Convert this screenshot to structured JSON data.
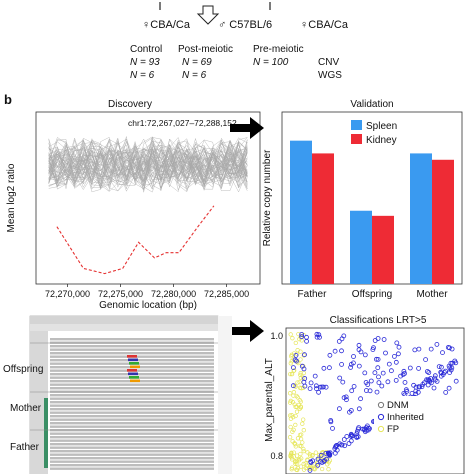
{
  "top": {
    "left_strain": "♀CBA/Ca",
    "middle_strain": "♂ C57BL/6",
    "right_strain": "♀CBA/Ca",
    "groups": [
      {
        "name": "Control",
        "n_cnv": "N = 93",
        "n_wgs": "N = 6"
      },
      {
        "name": "Post-meiotic",
        "n_cnv": "N = 69",
        "n_wgs": "N = 6"
      },
      {
        "name": "Pre-meiotic",
        "n_cnv": "N = 100",
        "n_wgs": ""
      }
    ],
    "row_labels": [
      "CNV",
      "WGS"
    ]
  },
  "panel_b": {
    "label": "b",
    "discovery": {
      "title": "Discovery",
      "region": "chr1:72,267,027–72,288,152",
      "ylabel": "Mean log2 ratio",
      "xlabel": "Genomic location (bp)",
      "xticks": [
        "72,270,000",
        "72,275,000",
        "72,280,000",
        "72,285,000"
      ]
    },
    "validation": {
      "title": "Validation",
      "ylabel": "Relative copy number",
      "categories": [
        "Father",
        "Offspring",
        "Mother"
      ],
      "legend": [
        "Spleen",
        "Kidney"
      ],
      "colors": {
        "spleen": "#3a9af0",
        "kidney": "#ee2b35"
      }
    },
    "igv": {
      "tracks": [
        "Offspring",
        "Mother",
        "Father"
      ]
    },
    "classifications": {
      "title": "Classifications LRT>5",
      "ylabel": "Max_parental_ALT",
      "ytick_top": "1.0",
      "ytick_mid": "0.8",
      "legend": [
        "DNM",
        "Inherited",
        "FP"
      ],
      "colors": {
        "dnm": "#777777",
        "inherited": "#2b2bd8",
        "fp": "#e6e65a"
      }
    }
  },
  "chart_data": [
    {
      "type": "line",
      "title": "Discovery",
      "xlabel": "Genomic location (bp)",
      "ylabel": "Mean log2 ratio",
      "xlim": [
        72267027,
        72288152
      ],
      "highlight_series": {
        "name": "",
        "x": [
          72269000,
          72271500,
          72273500,
          72275200,
          72276700,
          72278200,
          72279300,
          72280500,
          72282300,
          72283800
        ],
        "y": [
          -0.55,
          -0.95,
          -1.0,
          -0.95,
          -0.7,
          -0.85,
          -0.8,
          -0.8,
          -0.55,
          -0.35
        ]
      }
    },
    {
      "type": "bar",
      "title": "Validation",
      "ylabel": "Relative copy number",
      "categories": [
        "Father",
        "Offspring",
        "Mother"
      ],
      "series": [
        {
          "name": "Spleen",
          "values": [
            2.25,
            1.15,
            2.05
          ]
        },
        {
          "name": "Kidney",
          "values": [
            2.05,
            1.07,
            1.95
          ]
        }
      ],
      "ylim": [
        0,
        2.7
      ]
    },
    {
      "type": "scatter",
      "title": "Classifications LRT>5",
      "ylabel": "Max_parental_ALT",
      "ylim": [
        0.75,
        1.0
      ],
      "series": [
        {
          "name": "DNM",
          "values": []
        },
        {
          "name": "Inherited",
          "values": []
        },
        {
          "name": "FP",
          "values": []
        }
      ]
    }
  ]
}
